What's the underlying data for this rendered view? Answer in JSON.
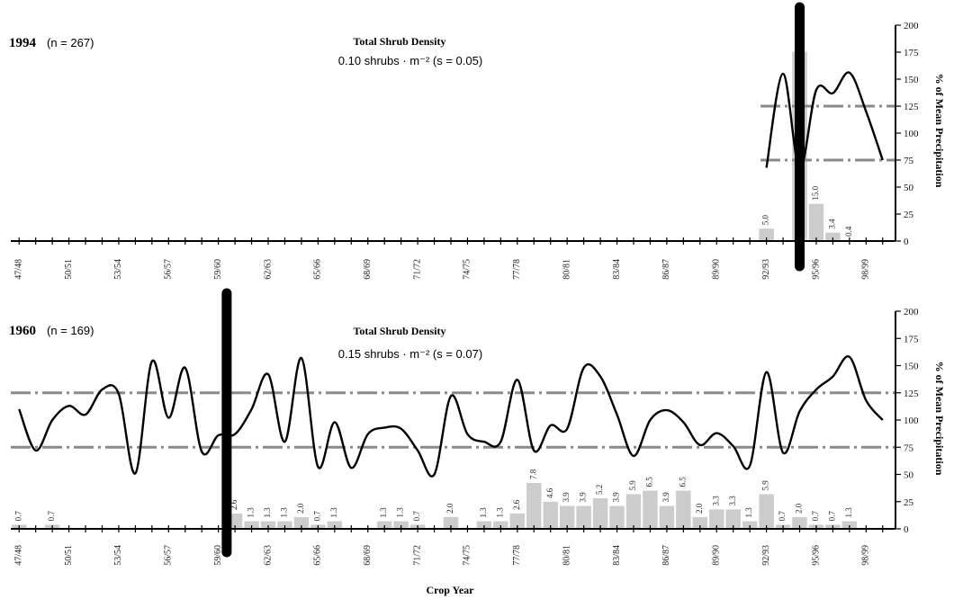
{
  "chart_data": [
    {
      "type": "line",
      "panel_label": "1994",
      "n_note": "(n = 267)",
      "density_title": "Total Shrub Density",
      "density_value": "0.10 shrubs · m⁻² (s = 0.05)",
      "ylabel_right": "% of Mean Precipitation",
      "ylim": [
        0,
        200
      ],
      "yticks": [
        0,
        25,
        50,
        75,
        100,
        125,
        150,
        175,
        200
      ],
      "x_tick_labels": [
        "47/48",
        "50/51",
        "53/54",
        "56/57",
        "59/60",
        "62/63",
        "65/66",
        "68/69",
        "71/72",
        "74/75",
        "77/78",
        "80/81",
        "83/84",
        "86/87",
        "89/90",
        "92/93",
        "95/96",
        "98/99"
      ],
      "establishment_marker_year": 1994,
      "reference_lines": [
        125,
        75
      ],
      "series": [
        {
          "kind": "bars",
          "x": [
            1992,
            1994,
            1995,
            1996,
            1997
          ],
          "values": [
            5.0,
            76.3,
            15.0,
            3.4,
            0.4
          ],
          "labels": [
            "5.0",
            "76.3",
            "15.0",
            "3.4",
            "0.4"
          ],
          "bar_scale_to_right_axis": 2.3
        },
        {
          "kind": "line",
          "x": [
            1992,
            1993,
            1994,
            1995,
            1996,
            1997,
            1998,
            1999
          ],
          "values": [
            68,
            155,
            67,
            140,
            137,
            156,
            120,
            75
          ]
        }
      ],
      "grid": false
    },
    {
      "type": "line",
      "panel_label": "1960",
      "n_note": "(n = 169)",
      "density_title": "Total Shrub Density",
      "density_value": "0.15 shrubs · m⁻² (s = 0.07)",
      "ylabel_right": "% of Mean Precipitation",
      "xlabel": "Crop Year",
      "ylim": [
        0,
        200
      ],
      "yticks": [
        0,
        25,
        50,
        75,
        100,
        125,
        150,
        175,
        200
      ],
      "x_tick_labels": [
        "47/48",
        "50/51",
        "53/54",
        "56/57",
        "59/60",
        "62/63",
        "65/66",
        "68/69",
        "71/72",
        "74/75",
        "77/78",
        "80/81",
        "83/84",
        "86/87",
        "89/90",
        "92/93",
        "95/96",
        "98/99"
      ],
      "establishment_marker_year": 1959.5,
      "reference_lines": [
        125,
        75
      ],
      "series": [
        {
          "kind": "bars",
          "x": [
            1947,
            1949,
            1960,
            1961,
            1962,
            1963,
            1964,
            1965,
            1966,
            1969,
            1970,
            1971,
            1973,
            1975,
            1976,
            1977,
            1978,
            1979,
            1980,
            1981,
            1982,
            1983,
            1984,
            1985,
            1986,
            1987,
            1988,
            1989,
            1990,
            1991,
            1992,
            1993,
            1994,
            1995,
            1996,
            1997
          ],
          "values": [
            0.7,
            0.7,
            2.6,
            1.3,
            1.3,
            1.3,
            2.0,
            0.7,
            1.3,
            1.3,
            1.3,
            0.7,
            2.0,
            1.3,
            1.3,
            2.6,
            7.8,
            4.6,
            3.9,
            3.9,
            5.2,
            3.9,
            5.9,
            6.5,
            3.9,
            6.5,
            2.0,
            3.3,
            3.3,
            1.3,
            5.9,
            0.7,
            2.0,
            0.7,
            0.7,
            1.3
          ],
          "labels": [
            "0.7",
            "0.7",
            "2.6",
            "1.3",
            "1.3",
            "1.3",
            "2.0",
            "0.7",
            "1.3",
            "1.3",
            "1.3",
            "0.7",
            "2.0",
            "1.3",
            "1.3",
            "2.6",
            "7.8",
            "4.6",
            "3.9",
            "3.9",
            "5.2",
            "3.9",
            "5.9",
            "6.5",
            "3.9",
            "6.5",
            "2.0",
            "3.3",
            "3.3",
            "1.3",
            "5.9",
            "0.7",
            "2.0",
            "0.7",
            "0.7",
            "1.3"
          ],
          "bar_scale_to_right_axis": 5.4
        },
        {
          "kind": "line",
          "x": [
            1947,
            1948,
            1949,
            1950,
            1951,
            1952,
            1953,
            1954,
            1955,
            1956,
            1957,
            1958,
            1959,
            1960,
            1961,
            1962,
            1963,
            1964,
            1965,
            1966,
            1967,
            1968,
            1969,
            1970,
            1971,
            1972,
            1973,
            1974,
            1975,
            1976,
            1977,
            1978,
            1979,
            1980,
            1981,
            1982,
            1983,
            1984,
            1985,
            1986,
            1987,
            1988,
            1989,
            1990,
            1991,
            1992,
            1993,
            1994,
            1995,
            1996,
            1997,
            1998,
            1999
          ],
          "values": [
            110,
            72,
            100,
            113,
            105,
            128,
            124,
            51,
            154,
            102,
            148,
            71,
            86,
            87,
            110,
            142,
            80,
            157,
            57,
            98,
            56,
            87,
            93,
            92,
            72,
            50,
            122,
            87,
            80,
            80,
            137,
            72,
            95,
            92,
            148,
            140,
            105,
            67,
            100,
            109,
            98,
            77,
            88,
            76,
            58,
            144,
            70,
            108,
            128,
            140,
            158,
            118,
            100
          ]
        }
      ],
      "grid": false
    }
  ]
}
